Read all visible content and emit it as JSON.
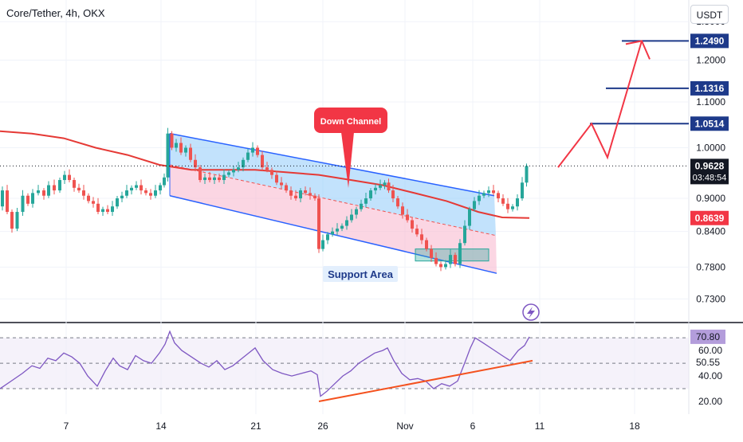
{
  "header": {
    "title": "Core/Tether, 4h, OKX",
    "currency_button": "USDT"
  },
  "colors": {
    "up": "#26a69a",
    "down": "#ef5350",
    "ma": "#e53935",
    "rsi": "#7e57c2",
    "channel_line": "#2962ff",
    "channel_upper_fill": "#90caf9",
    "channel_lower_fill": "#f8bbd0",
    "badge_blue": "#1e3a8a",
    "badge_red": "#f23645"
  },
  "chart_data": [
    {
      "type": "line",
      "panel": "price",
      "x_labels": [
        "7",
        "14",
        "21",
        "26",
        "Nov",
        "6",
        "11",
        "18"
      ],
      "y_ticks": [
        "1.3000",
        "1.2000",
        "1.1000",
        "1.0000",
        "0.9000",
        "0.8400",
        "0.7800",
        "0.7300"
      ],
      "ylim": [
        0.695,
        1.36
      ],
      "log_scale": true,
      "series": [
        {
          "role": "price",
          "points": [
            [
              0,
              0.885
            ],
            [
              6,
              0.915
            ],
            [
              12,
              0.875
            ],
            [
              18,
              0.845
            ],
            [
              25,
              0.875
            ],
            [
              32,
              0.905
            ],
            [
              38,
              0.89
            ],
            [
              44,
              0.91
            ],
            [
              52,
              0.915
            ],
            [
              58,
              0.905
            ],
            [
              64,
              0.925
            ],
            [
              72,
              0.915
            ],
            [
              78,
              0.935
            ],
            [
              84,
              0.945
            ],
            [
              90,
              0.935
            ],
            [
              96,
              0.92
            ],
            [
              102,
              0.915
            ],
            [
              108,
              0.905
            ],
            [
              114,
              0.895
            ],
            [
              120,
              0.89
            ],
            [
              126,
              0.875
            ],
            [
              132,
              0.88
            ],
            [
              138,
              0.875
            ],
            [
              144,
              0.885
            ],
            [
              150,
              0.9
            ],
            [
              156,
              0.905
            ],
            [
              162,
              0.915
            ],
            [
              168,
              0.92
            ],
            [
              174,
              0.925
            ],
            [
              180,
              0.915
            ],
            [
              186,
              0.91
            ],
            [
              192,
              0.905
            ],
            [
              198,
              0.915
            ],
            [
              204,
              0.925
            ],
            [
              208,
              0.94
            ],
            [
              213,
              1.03
            ],
            [
              218,
              1.0
            ],
            [
              224,
              1.01
            ],
            [
              230,
              0.99
            ],
            [
              236,
              1.0
            ],
            [
              242,
              0.975
            ],
            [
              248,
              0.96
            ],
            [
              254,
              0.935
            ],
            [
              260,
              0.94
            ],
            [
              266,
              0.935
            ],
            [
              272,
              0.94
            ],
            [
              278,
              0.935
            ],
            [
              284,
              0.945
            ],
            [
              290,
              0.95
            ],
            [
              296,
              0.955
            ],
            [
              302,
              0.96
            ],
            [
              308,
              0.975
            ],
            [
              314,
              0.99
            ],
            [
              320,
              1.0
            ],
            [
              326,
              0.985
            ],
            [
              332,
              0.96
            ],
            [
              338,
              0.955
            ],
            [
              344,
              0.945
            ],
            [
              350,
              0.93
            ],
            [
              356,
              0.925
            ],
            [
              362,
              0.915
            ],
            [
              368,
              0.905
            ],
            [
              374,
              0.9
            ],
            [
              380,
              0.915
            ],
            [
              386,
              0.91
            ],
            [
              392,
              0.905
            ],
            [
              398,
              0.9
            ],
            [
              402,
              0.81
            ],
            [
              408,
              0.825
            ],
            [
              414,
              0.835
            ],
            [
              420,
              0.84
            ],
            [
              426,
              0.845
            ],
            [
              432,
              0.85
            ],
            [
              438,
              0.86
            ],
            [
              444,
              0.87
            ],
            [
              450,
              0.88
            ],
            [
              456,
              0.89
            ],
            [
              462,
              0.9
            ],
            [
              468,
              0.915
            ],
            [
              474,
              0.92
            ],
            [
              480,
              0.925
            ],
            [
              485,
              0.93
            ],
            [
              490,
              0.915
            ],
            [
              496,
              0.9
            ],
            [
              502,
              0.885
            ],
            [
              508,
              0.87
            ],
            [
              514,
              0.86
            ],
            [
              520,
              0.845
            ],
            [
              526,
              0.835
            ],
            [
              532,
              0.825
            ],
            [
              538,
              0.81
            ],
            [
              544,
              0.795
            ],
            [
              550,
              0.785
            ],
            [
              556,
              0.78
            ],
            [
              562,
              0.785
            ],
            [
              568,
              0.8
            ],
            [
              574,
              0.785
            ],
            [
              580,
              0.82
            ],
            [
              586,
              0.85
            ],
            [
              592,
              0.88
            ],
            [
              598,
              0.895
            ],
            [
              604,
              0.905
            ],
            [
              610,
              0.91
            ],
            [
              616,
              0.915
            ],
            [
              622,
              0.91
            ],
            [
              628,
              0.9
            ],
            [
              634,
              0.89
            ],
            [
              640,
              0.88
            ],
            [
              646,
              0.885
            ],
            [
              652,
              0.9
            ],
            [
              658,
              0.93
            ],
            [
              663,
              0.9628
            ]
          ]
        },
        {
          "role": "moving-average",
          "points": [
            [
              0,
              1.035
            ],
            [
              40,
              1.03
            ],
            [
              80,
              1.02
            ],
            [
              120,
              1.0
            ],
            [
              160,
              0.985
            ],
            [
              200,
              0.965
            ],
            [
              240,
              0.955
            ],
            [
              280,
              0.955
            ],
            [
              320,
              0.955
            ],
            [
              360,
              0.95
            ],
            [
              400,
              0.945
            ],
            [
              440,
              0.935
            ],
            [
              480,
              0.925
            ],
            [
              520,
              0.91
            ],
            [
              560,
              0.895
            ],
            [
              600,
              0.875
            ],
            [
              630,
              0.865
            ],
            [
              664,
              0.8639
            ]
          ]
        }
      ],
      "down_channel": {
        "label": "Down Channel",
        "upper": [
          [
            213,
            1.03
          ],
          [
            620,
            0.905
          ]
        ],
        "lower": [
          [
            213,
            0.905
          ],
          [
            623,
            0.77
          ]
        ],
        "middle": [
          [
            213,
            0.965
          ],
          [
            622,
            0.833
          ]
        ]
      },
      "support_area": {
        "label": "Support Area",
        "x_range": [
          521,
          613
        ],
        "y_range": [
          0.79,
          0.81
        ]
      },
      "projection": {
        "points": [
          [
            700,
            0.96
          ],
          [
            742,
            1.0514
          ],
          [
            762,
            0.98
          ],
          [
            805,
            1.249
          ]
        ]
      },
      "target_levels": [
        {
          "value": 1.0514,
          "label": "1.0514",
          "x_start": 740
        },
        {
          "value": 1.1316,
          "label": "1.1316",
          "x_start": 760
        },
        {
          "value": 1.249,
          "label": "1.2490",
          "x_start": 780
        }
      ],
      "current_price": {
        "value": 0.9628,
        "label": "0.9628",
        "countdown": "03:48:54"
      },
      "ma_value": {
        "value": 0.8639,
        "label": "0.8639"
      }
    },
    {
      "type": "line",
      "panel": "rsi",
      "y_ticks": [
        "60.00",
        "40.00",
        "20.00"
      ],
      "ylim": [
        10,
        82
      ],
      "guide_levels": [
        70,
        50,
        30
      ],
      "series": [
        {
          "role": "rsi",
          "points": [
            [
              0,
              30
            ],
            [
              14,
              36
            ],
            [
              28,
              42
            ],
            [
              40,
              48
            ],
            [
              50,
              46
            ],
            [
              60,
              54
            ],
            [
              70,
              52
            ],
            [
              80,
              58
            ],
            [
              90,
              55
            ],
            [
              100,
              50
            ],
            [
              110,
              40
            ],
            [
              122,
              32
            ],
            [
              132,
              44
            ],
            [
              142,
              54
            ],
            [
              150,
              48
            ],
            [
              160,
              45
            ],
            [
              170,
              56
            ],
            [
              180,
              52
            ],
            [
              190,
              50
            ],
            [
              200,
              58
            ],
            [
              207,
              65
            ],
            [
              213,
              75
            ],
            [
              219,
              66
            ],
            [
              228,
              60
            ],
            [
              240,
              55
            ],
            [
              252,
              50
            ],
            [
              262,
              47
            ],
            [
              272,
              52
            ],
            [
              282,
              45
            ],
            [
              292,
              48
            ],
            [
              302,
              53
            ],
            [
              312,
              58
            ],
            [
              320,
              62
            ],
            [
              330,
              52
            ],
            [
              342,
              45
            ],
            [
              354,
              42
            ],
            [
              366,
              40
            ],
            [
              378,
              42
            ],
            [
              390,
              44
            ],
            [
              398,
              41
            ],
            [
              402,
              24
            ],
            [
              410,
              28
            ],
            [
              420,
              34
            ],
            [
              430,
              40
            ],
            [
              440,
              44
            ],
            [
              450,
              50
            ],
            [
              460,
              54
            ],
            [
              470,
              58
            ],
            [
              480,
              60
            ],
            [
              486,
              62
            ],
            [
              494,
              52
            ],
            [
              504,
              42
            ],
            [
              514,
              37
            ],
            [
              524,
              38
            ],
            [
              534,
              36
            ],
            [
              544,
              30
            ],
            [
              554,
              34
            ],
            [
              564,
              32
            ],
            [
              574,
              36
            ],
            [
              584,
              52
            ],
            [
              590,
              62
            ],
            [
              596,
              70
            ],
            [
              606,
              66
            ],
            [
              618,
              61
            ],
            [
              630,
              56
            ],
            [
              640,
              52
            ],
            [
              650,
              60
            ],
            [
              658,
              64
            ],
            [
              664,
              70.8
            ]
          ]
        }
      ],
      "trendline": [
        [
          400,
          20
        ],
        [
          668,
          52
        ]
      ],
      "badges": [
        {
          "value": 70.8,
          "label": "70.80"
        },
        {
          "value": 50.55,
          "label": "50.55"
        }
      ]
    }
  ]
}
